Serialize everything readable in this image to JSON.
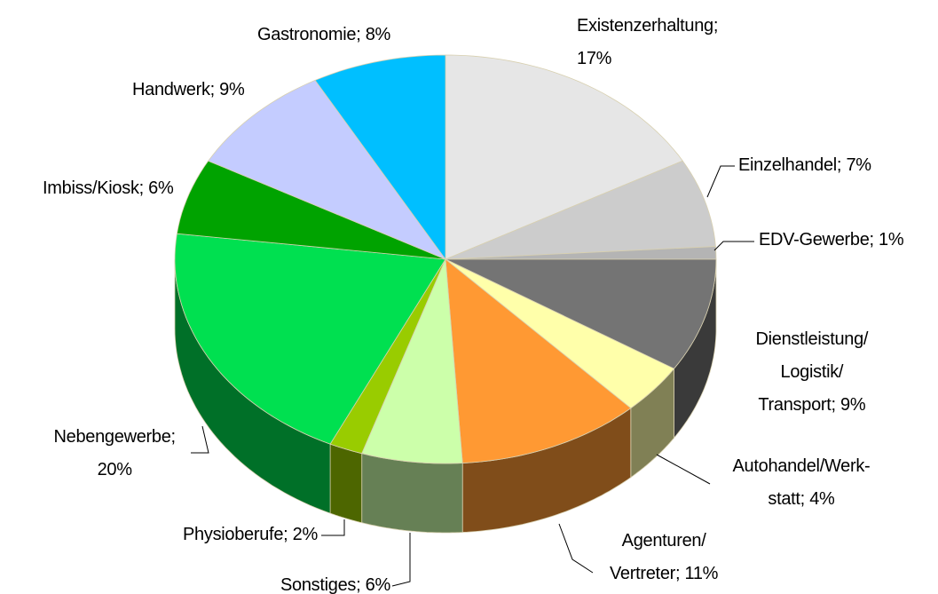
{
  "chart_data": {
    "type": "pie",
    "labels": [
      "Existenzerhaltung;\n17%",
      "Einzelhandel; 7%",
      "EDV-Gewerbe; 1%",
      "Dienstleistung/\nLogistik/\nTransport; 9%",
      "Autohandel/Werk-\nstatt; 4%",
      "Agenturen/\nVertreter; 11%",
      "Sonstiges; 6%",
      "Physioberufe; 2%",
      "Nebengewerbe;\n20%",
      "Imbiss/Kiosk; 6%",
      "Handwerk; 9%",
      "Gastronomie; 8%"
    ],
    "values": [
      17,
      7,
      1,
      9,
      4,
      11,
      6,
      2,
      20,
      6,
      9,
      8
    ],
    "colors": [
      "#e6e6e6",
      "#cccccc",
      "#b4b4b4",
      "#747474",
      "#ffffaa",
      "#ff9933",
      "#ccffaa",
      "#99cc00",
      "#00e050",
      "#00a300",
      "#c4ccff",
      "#00bfff"
    ]
  }
}
